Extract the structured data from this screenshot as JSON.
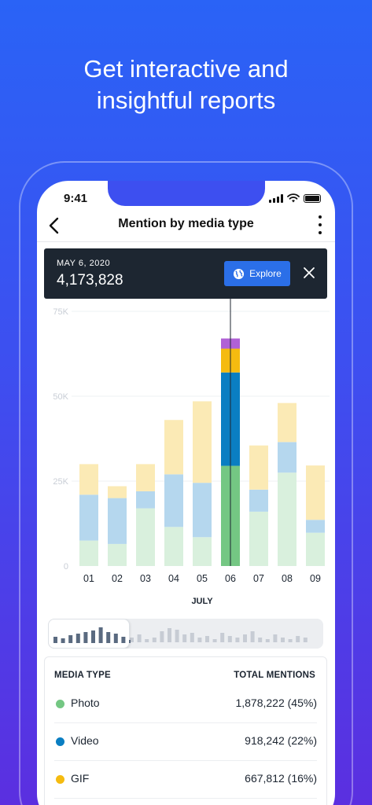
{
  "headline": {
    "line1": "Get interactive and",
    "line2": "insightful reports"
  },
  "status_bar": {
    "time": "9:41"
  },
  "nav": {
    "title": "Mention by media type"
  },
  "tooltip": {
    "date": "MAY 6, 2020",
    "value": "4,173,828",
    "explore_label": "Explore"
  },
  "colors": {
    "photo": "#74c783",
    "video": "#0a7ec2",
    "gif": "#f5bb10",
    "other": "#b061d6",
    "photo_light": "#d9f0dd",
    "video_light": "#b5d7ee",
    "gif_light": "#fbeab5"
  },
  "chart_data": {
    "type": "bar",
    "stacked": true,
    "categories": [
      "01",
      "02",
      "03",
      "04",
      "05",
      "06",
      "07",
      "08",
      "09"
    ],
    "xlabel": "JULY",
    "ylim": [
      0,
      75000
    ],
    "yticks": [
      "0",
      "25K",
      "50K",
      "75K"
    ],
    "highlighted_category": "06",
    "series": [
      {
        "name": "Photo",
        "values": [
          7500,
          6500,
          17000,
          11500,
          8500,
          29500,
          16000,
          27500,
          9800
        ]
      },
      {
        "name": "Video",
        "values": [
          13500,
          13500,
          5000,
          15500,
          16000,
          27500,
          6500,
          9000,
          3800
        ]
      },
      {
        "name": "GIF",
        "values": [
          9000,
          3500,
          8000,
          16000,
          24000,
          7000,
          13000,
          11500,
          16000
        ]
      },
      {
        "series_index": 3,
        "values": [
          0,
          0,
          0,
          0,
          0,
          3000,
          0,
          0,
          0
        ]
      }
    ]
  },
  "scrubber": {
    "values": [
      4,
      3,
      5,
      6,
      7,
      8,
      10,
      7,
      6,
      4,
      2,
      3,
      5,
      2,
      3,
      7,
      9,
      8,
      5,
      6,
      3,
      4,
      2,
      6,
      4,
      3,
      5,
      7,
      3,
      2,
      5,
      3,
      2,
      4,
      3
    ],
    "window_fraction": 0.3
  },
  "table": {
    "col1": "MEDIA TYPE",
    "col2": "TOTAL MENTIONS",
    "rows": [
      {
        "label": "Photo",
        "value": "1,878,222 (45%)",
        "color": "#74c783"
      },
      {
        "label": "Video",
        "value": "918,242 (22%)",
        "color": "#0a7ec2"
      },
      {
        "label": "GIF",
        "value": "667,812 (16%)",
        "color": "#f5bb10"
      }
    ]
  }
}
